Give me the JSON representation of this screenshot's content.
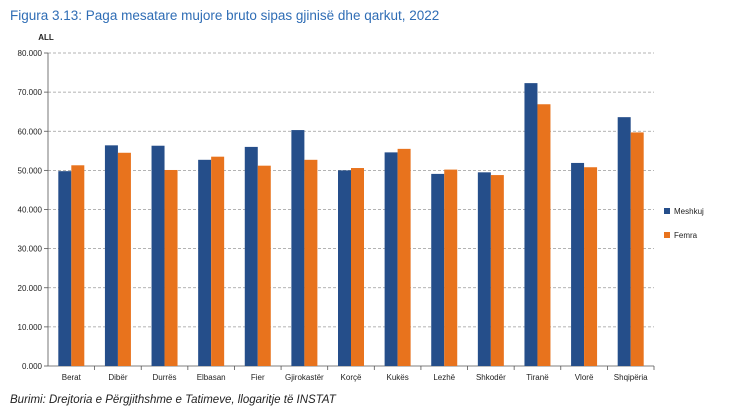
{
  "title": "Figura 3.13: Paga mesatare mujore bruto sipas gjinisë dhe qarkut, 2022",
  "source": "Burimi: Drejtoria e Përgjithshme e Tatimeve, llogaritje të INSTAT",
  "colors": {
    "title": "#2f6db5",
    "meshkuj": "#254e8a",
    "femra": "#e8731d",
    "grid": "#9a9a9a",
    "axis": "#555555"
  },
  "chart_data": {
    "type": "bar",
    "ylabel": "ALL",
    "xlabel": "",
    "ylim": [
      0,
      80000
    ],
    "yticks": [
      0,
      10000,
      20000,
      30000,
      40000,
      50000,
      60000,
      70000,
      80000
    ],
    "ytick_labels": [
      "0.000",
      "10.000",
      "20.000",
      "30.000",
      "40.000",
      "50.000",
      "60.000",
      "70.000",
      "80.000"
    ],
    "grid": true,
    "legend_position": "right",
    "categories": [
      "Berat",
      "Dibër",
      "Durrës",
      "Elbasan",
      "Fier",
      "Gjirokastër",
      "Korçë",
      "Kukës",
      "Lezhë",
      "Shkodër",
      "Tiranë",
      "Vlorë",
      "Shqipëria"
    ],
    "series": [
      {
        "name": "Meshkuj",
        "values": [
          49800,
          56400,
          56300,
          52700,
          56000,
          60300,
          50000,
          54600,
          49100,
          49500,
          72300,
          51900,
          63600
        ]
      },
      {
        "name": "Femra",
        "values": [
          51300,
          54500,
          50100,
          53500,
          51200,
          52700,
          50600,
          55500,
          50200,
          48800,
          66900,
          50800,
          59700
        ]
      }
    ]
  }
}
